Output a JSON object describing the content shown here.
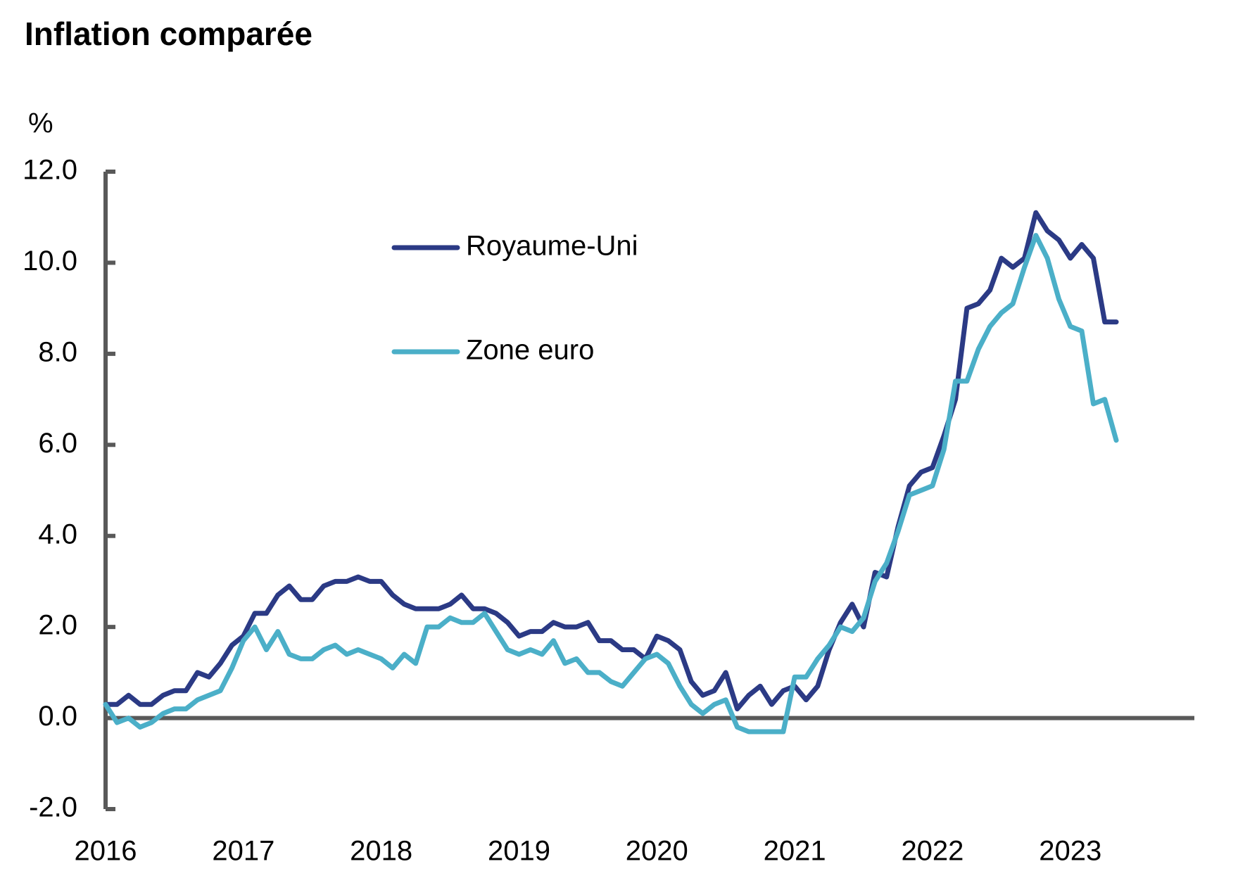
{
  "chart_data": {
    "type": "line",
    "title": "Inflation comparée",
    "y_label": "%",
    "x": [
      2016,
      2016.083,
      2016.167,
      2016.25,
      2016.333,
      2016.417,
      2016.5,
      2016.583,
      2016.667,
      2016.75,
      2016.833,
      2016.917,
      2017,
      2017.083,
      2017.167,
      2017.25,
      2017.333,
      2017.417,
      2017.5,
      2017.583,
      2017.667,
      2017.75,
      2017.833,
      2017.917,
      2018,
      2018.083,
      2018.167,
      2018.25,
      2018.333,
      2018.417,
      2018.5,
      2018.583,
      2018.667,
      2018.75,
      2018.833,
      2018.917,
      2019,
      2019.083,
      2019.167,
      2019.25,
      2019.333,
      2019.417,
      2019.5,
      2019.583,
      2019.667,
      2019.75,
      2019.833,
      2019.917,
      2020,
      2020.083,
      2020.167,
      2020.25,
      2020.333,
      2020.417,
      2020.5,
      2020.583,
      2020.667,
      2020.75,
      2020.833,
      2020.917,
      2021,
      2021.083,
      2021.167,
      2021.25,
      2021.333,
      2021.417,
      2021.5,
      2021.583,
      2021.667,
      2021.75,
      2021.833,
      2021.917,
      2022,
      2022.083,
      2022.167,
      2022.25,
      2022.333,
      2022.417,
      2022.5,
      2022.583,
      2022.667,
      2022.75,
      2022.833,
      2022.917,
      2023,
      2023.083,
      2023.167,
      2023.25,
      2023.333
    ],
    "series": [
      {
        "name": "Royaume-Uni",
        "color": "#2b3a85",
        "values": [
          0.3,
          0.3,
          0.5,
          0.3,
          0.3,
          0.5,
          0.6,
          0.6,
          1.0,
          0.9,
          1.2,
          1.6,
          1.8,
          2.3,
          2.3,
          2.7,
          2.9,
          2.6,
          2.6,
          2.9,
          3.0,
          3.0,
          3.1,
          3.0,
          3.0,
          2.7,
          2.5,
          2.4,
          2.4,
          2.4,
          2.5,
          2.7,
          2.4,
          2.4,
          2.3,
          2.1,
          1.8,
          1.9,
          1.9,
          2.1,
          2.0,
          2.0,
          2.1,
          1.7,
          1.7,
          1.5,
          1.5,
          1.3,
          1.8,
          1.7,
          1.5,
          0.8,
          0.5,
          0.6,
          1.0,
          0.2,
          0.5,
          0.7,
          0.3,
          0.6,
          0.7,
          0.4,
          0.7,
          1.5,
          2.1,
          2.5,
          2.0,
          3.2,
          3.1,
          4.2,
          5.1,
          5.4,
          5.5,
          6.2,
          7.0,
          9.0,
          9.1,
          9.4,
          10.1,
          9.9,
          10.1,
          11.1,
          10.7,
          10.5,
          10.1,
          10.4,
          10.1,
          8.7,
          8.7
        ]
      },
      {
        "name": "Zone euro",
        "color": "#4bafc8",
        "values": [
          0.3,
          -0.1,
          0.0,
          -0.2,
          -0.1,
          0.1,
          0.2,
          0.2,
          0.4,
          0.5,
          0.6,
          1.1,
          1.7,
          2.0,
          1.5,
          1.9,
          1.4,
          1.3,
          1.3,
          1.5,
          1.6,
          1.4,
          1.5,
          1.4,
          1.3,
          1.1,
          1.4,
          1.2,
          2.0,
          2.0,
          2.2,
          2.1,
          2.1,
          2.3,
          1.9,
          1.5,
          1.4,
          1.5,
          1.4,
          1.7,
          1.2,
          1.3,
          1.0,
          1.0,
          0.8,
          0.7,
          1.0,
          1.3,
          1.4,
          1.2,
          0.7,
          0.3,
          0.1,
          0.3,
          0.4,
          -0.2,
          -0.3,
          -0.3,
          -0.3,
          -0.3,
          0.9,
          0.9,
          1.3,
          1.6,
          2.0,
          1.9,
          2.2,
          3.0,
          3.4,
          4.1,
          4.9,
          5.0,
          5.1,
          5.9,
          7.4,
          7.4,
          8.1,
          8.6,
          8.9,
          9.1,
          9.9,
          10.6,
          10.1,
          9.2,
          8.6,
          8.5,
          6.9,
          7.0,
          6.1
        ]
      }
    ],
    "xlim": [
      2016,
      2023.9
    ],
    "xticks": [
      2016,
      2017,
      2018,
      2019,
      2020,
      2021,
      2022,
      2023
    ],
    "ylim": [
      -2,
      12
    ],
    "yticks": [
      {
        "value": -2,
        "label": "-2.0"
      },
      {
        "value": 0,
        "label": "0.0"
      },
      {
        "value": 2,
        "label": "2.0"
      },
      {
        "value": 4,
        "label": "4.0"
      },
      {
        "value": 6,
        "label": "6.0"
      },
      {
        "value": 8,
        "label": "8.0"
      },
      {
        "value": 10,
        "label": "10.0"
      },
      {
        "value": 12,
        "label": "12.0"
      }
    ],
    "grid": false,
    "legend": "upper center"
  }
}
